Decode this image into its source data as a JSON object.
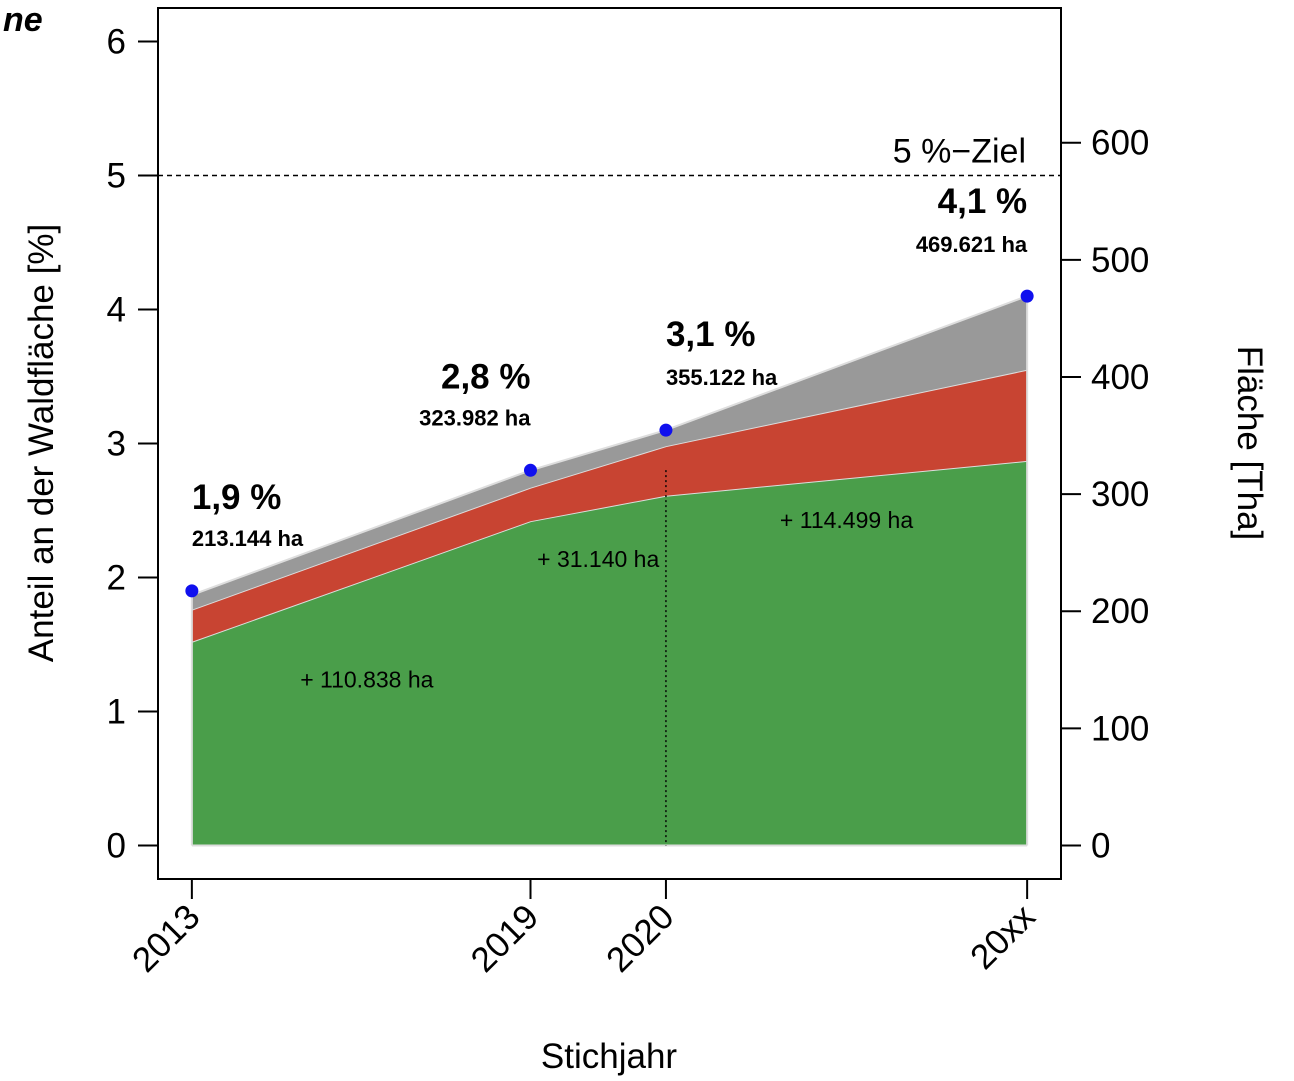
{
  "chart_data": {
    "type": "area",
    "title_fragment": "ne",
    "xlabel": "Stichjahr",
    "ylabel_left": "Anteil an der Waldfläche [%]",
    "ylabel_right": "Fläche [Tha]",
    "x_categories": [
      "2013",
      "2019",
      "2020",
      "20xx"
    ],
    "x_positions": [
      2013,
      2019,
      2021.4,
      2027.8
    ],
    "xlim": [
      2012.4,
      2028.4
    ],
    "ylim_left": [
      -0.25,
      6.25
    ],
    "yticks_left": [
      0,
      1,
      2,
      3,
      4,
      5,
      6
    ],
    "ylim_right": [
      -28.6,
      715
    ],
    "yticks_right": [
      0,
      100,
      200,
      300,
      400,
      500,
      600
    ],
    "grid": false,
    "series": [
      {
        "color": "#4a9e4a",
        "values": [
          1.52,
          2.42,
          2.61,
          2.87
        ]
      },
      {
        "color": "#c84432",
        "values": [
          0.24,
          0.25,
          0.37,
          0.68
        ]
      },
      {
        "color": "#999999",
        "values": [
          0.11,
          0.13,
          0.12,
          0.55
        ]
      }
    ],
    "totals_pct": [
      1.9,
      2.8,
      3.1,
      4.1
    ],
    "point_color": "#1010ee",
    "target": {
      "value": 5,
      "label": "5 %−Ziel"
    },
    "vline_x": 2021.4,
    "point_labels": [
      {
        "pct": "1,9 %",
        "area": "213.144 ha"
      },
      {
        "pct": "2,8 %",
        "area": "323.982 ha"
      },
      {
        "pct": "3,1 %",
        "area": "355.122 ha"
      },
      {
        "pct": "4,1 %",
        "area": "469.621 ha"
      }
    ],
    "annotations": [
      {
        "text": "+ 110.838 ha",
        "x": 2016.1,
        "y": 1.18
      },
      {
        "text": "+  31.140 ha",
        "x": 2020.2,
        "y": 2.08
      },
      {
        "text": "+ 114.499 ha",
        "x": 2024.6,
        "y": 2.37
      }
    ]
  }
}
